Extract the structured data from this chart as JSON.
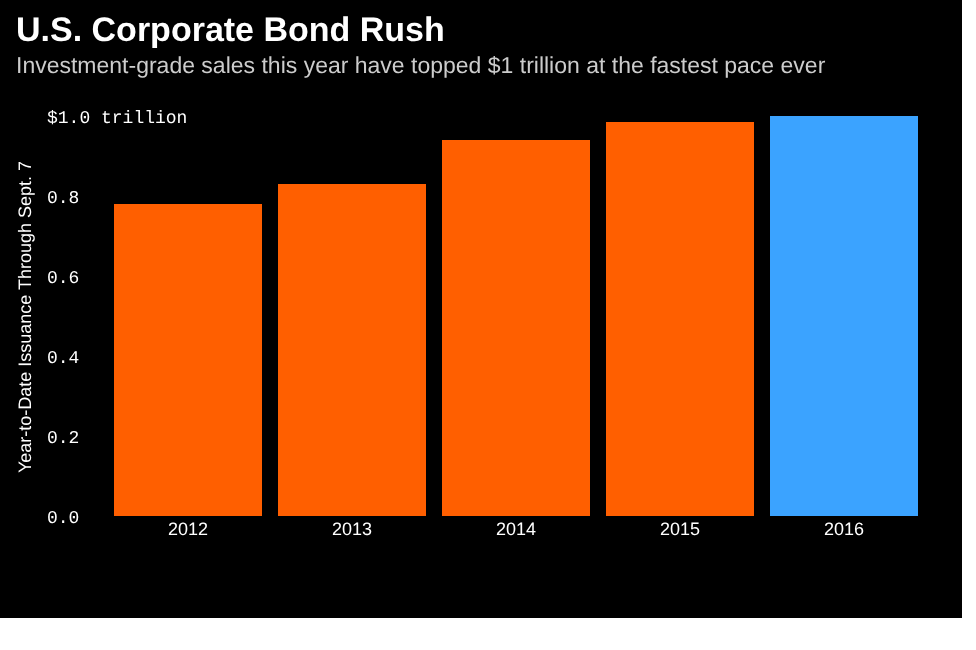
{
  "chart_data": {
    "type": "bar",
    "title": "U.S. Corporate Bond Rush",
    "subtitle": "Investment-grade sales this year have topped $1 trillion at the fastest pace ever",
    "ylabel": "Year-to-Date Issuance Through Sept. 7",
    "categories": [
      "2012",
      "2013",
      "2014",
      "2015",
      "2016"
    ],
    "values": [
      0.78,
      0.83,
      0.94,
      0.985,
      1.0
    ],
    "colors": [
      "#ff5f00",
      "#ff5f00",
      "#ff5f00",
      "#ff5f00",
      "#3ba3ff"
    ],
    "ylim": [
      0,
      1.0
    ],
    "yticks": [
      {
        "value": 0,
        "label": "0.0"
      },
      0.2,
      0.4,
      0.6,
      0.8,
      {
        "value": 1.0,
        "label": "$1.0 trillion"
      }
    ],
    "grid": false
  }
}
